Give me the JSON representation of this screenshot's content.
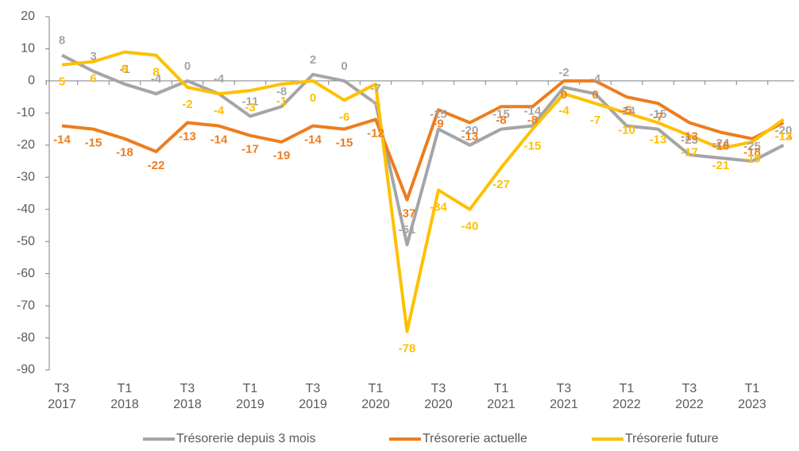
{
  "chart_data": {
    "type": "line",
    "categories": [
      "T3\n2017",
      null,
      "T1\n2018",
      null,
      "T3\n2018",
      null,
      "T1\n2019",
      null,
      "T3\n2019",
      null,
      "T1\n2020",
      null,
      "T3\n2020",
      null,
      "T1\n2021",
      null,
      "T3\n2021",
      null,
      "T1\n2022",
      null,
      "T3\n2022",
      null,
      "T1\n2023",
      null
    ],
    "series": [
      {
        "name": "Trésorerie depuis 3 mois",
        "color": "#a5a5a5",
        "values": [
          8,
          3,
          -1,
          -4,
          0,
          -4,
          -11,
          -8,
          2,
          0,
          -7,
          -51,
          -15,
          -20,
          -15,
          -14,
          -2,
          -4,
          -14,
          -15,
          -23,
          -24,
          -25,
          -20
        ]
      },
      {
        "name": "Trésorerie actuelle",
        "color": "#ed7d1f",
        "values": [
          -14,
          -15,
          -18,
          -22,
          -13,
          -14,
          -17,
          -19,
          -14,
          -15,
          -12,
          -37,
          -9,
          -13,
          -8,
          -8,
          0,
          0,
          -5,
          -7,
          -13,
          -16,
          -18,
          -13
        ]
      },
      {
        "name": "Trésorerie future",
        "color": "#ffc000",
        "values": [
          5,
          6,
          9,
          8,
          -2,
          -4,
          -3,
          -1,
          0,
          -6,
          -1,
          -78,
          -34,
          -40,
          -27,
          -15,
          -4,
          -7,
          -10,
          -13,
          -17,
          -21,
          -19,
          -12
        ]
      }
    ],
    "ylim": [
      -90,
      20
    ],
    "yticks": [
      -90,
      -80,
      -70,
      -60,
      -50,
      -40,
      -30,
      -20,
      -10,
      0,
      10,
      20
    ],
    "legend": "bottom"
  }
}
